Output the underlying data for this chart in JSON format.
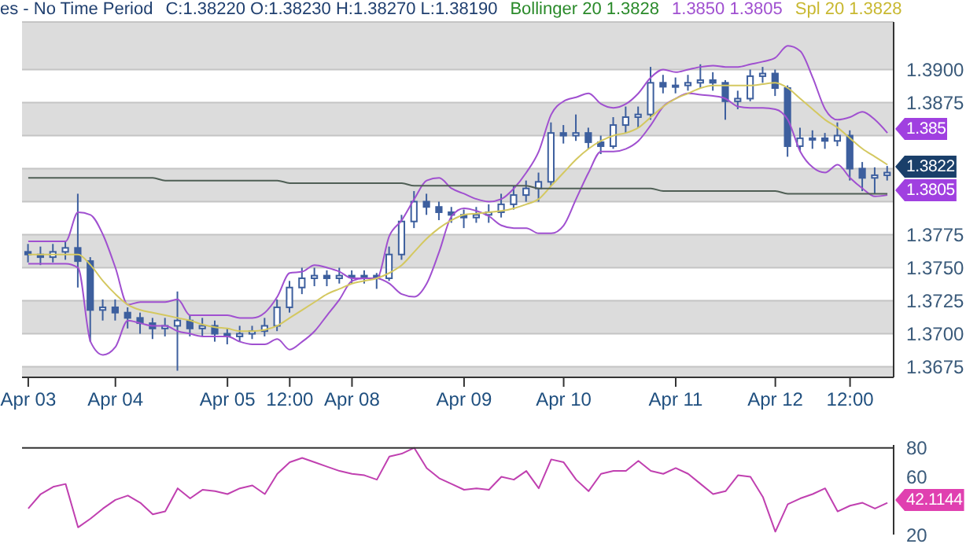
{
  "chart_data": [
    {
      "type": "candlestick",
      "color": "#3d5f9e",
      "annotations": [
        "es - No Time Period",
        "C:1.38220 O:1.38230 H:1.38270 L:1.38190",
        "Bollinger 20 1.3828",
        "1.3850 1.3805",
        "Spl 20 1.3828",
        "1.385",
        "1.3822",
        "1.3805"
      ],
      "categories": [
        "Apr 03",
        null,
        null,
        null,
        null,
        null,
        null,
        "Apr 04",
        null,
        null,
        null,
        null,
        null,
        null,
        null,
        null,
        "Apr 05",
        null,
        null,
        null,
        null,
        "12:00",
        null,
        null,
        null,
        null,
        "Apr 08",
        null,
        null,
        null,
        null,
        null,
        null,
        null,
        null,
        "Apr 09",
        null,
        null,
        null,
        null,
        null,
        null,
        null,
        "Apr 10",
        null,
        null,
        null,
        null,
        null,
        null,
        null,
        null,
        "Apr 11",
        null,
        null,
        null,
        null,
        null,
        null,
        null,
        "Apr 12",
        null,
        null,
        null,
        null,
        null,
        "12:00",
        null,
        null,
        null
      ],
      "ohlc": [
        [
          1.3762,
          1.3768,
          1.3754,
          1.376
        ],
        [
          1.376,
          1.3766,
          1.3752,
          1.3758
        ],
        [
          1.3758,
          1.3768,
          1.3754,
          1.3762
        ],
        [
          1.3762,
          1.377,
          1.3756,
          1.3765
        ],
        [
          1.3765,
          1.3806,
          1.3735,
          1.3755
        ],
        [
          1.3755,
          1.3758,
          1.3694,
          1.3718
        ],
        [
          1.3718,
          1.3726,
          1.371,
          1.372
        ],
        [
          1.372,
          1.3726,
          1.371,
          1.3716
        ],
        [
          1.3716,
          1.372,
          1.3704,
          1.3712
        ],
        [
          1.3712,
          1.3716,
          1.37,
          1.3708
        ],
        [
          1.3708,
          1.3712,
          1.3696,
          1.3704
        ],
        [
          1.3704,
          1.3712,
          1.3698,
          1.3706
        ],
        [
          1.3706,
          1.3732,
          1.3672,
          1.371
        ],
        [
          1.371,
          1.3714,
          1.3698,
          1.3704
        ],
        [
          1.3704,
          1.3712,
          1.3698,
          1.3706
        ],
        [
          1.3706,
          1.371,
          1.3694,
          1.37
        ],
        [
          1.37,
          1.3704,
          1.3692,
          1.3698
        ],
        [
          1.3698,
          1.3706,
          1.3694,
          1.37
        ],
        [
          1.37,
          1.3706,
          1.3696,
          1.3702
        ],
        [
          1.3702,
          1.3712,
          1.3698,
          1.3706
        ],
        [
          1.3706,
          1.3726,
          1.3702,
          1.372
        ],
        [
          1.372,
          1.374,
          1.3716,
          1.3735
        ],
        [
          1.3735,
          1.375,
          1.373,
          1.3742
        ],
        [
          1.3742,
          1.375,
          1.3736,
          1.3744
        ],
        [
          1.3744,
          1.3748,
          1.3736,
          1.3742
        ],
        [
          1.3742,
          1.375,
          1.3738,
          1.3744
        ],
        [
          1.3744,
          1.3748,
          1.3738,
          1.3743
        ],
        [
          1.3743,
          1.3748,
          1.3738,
          1.3744
        ],
        [
          1.3744,
          1.3746,
          1.3734,
          1.3742
        ],
        [
          1.3742,
          1.3766,
          1.374,
          1.376
        ],
        [
          1.376,
          1.379,
          1.3756,
          1.3785
        ],
        [
          1.3785,
          1.3808,
          1.378,
          1.38
        ],
        [
          1.38,
          1.3806,
          1.379,
          1.3796
        ],
        [
          1.3796,
          1.38,
          1.3786,
          1.3792
        ],
        [
          1.3792,
          1.3796,
          1.3784,
          1.379
        ],
        [
          1.379,
          1.3794,
          1.378,
          1.3788
        ],
        [
          1.3788,
          1.3796,
          1.3784,
          1.379
        ],
        [
          1.379,
          1.3798,
          1.3784,
          1.3792
        ],
        [
          1.3792,
          1.3806,
          1.3788,
          1.3798
        ],
        [
          1.3798,
          1.3812,
          1.3794,
          1.3805
        ],
        [
          1.3805,
          1.3816,
          1.38,
          1.381
        ],
        [
          1.381,
          1.3822,
          1.38,
          1.3815
        ],
        [
          1.3815,
          1.386,
          1.3812,
          1.3852
        ],
        [
          1.3852,
          1.3858,
          1.3844,
          1.385
        ],
        [
          1.385,
          1.3866,
          1.3846,
          1.3852
        ],
        [
          1.3852,
          1.3856,
          1.384,
          1.3845
        ],
        [
          1.3845,
          1.385,
          1.3836,
          1.3842
        ],
        [
          1.3842,
          1.3864,
          1.384,
          1.3858
        ],
        [
          1.3858,
          1.3872,
          1.3852,
          1.3864
        ],
        [
          1.3864,
          1.3872,
          1.3856,
          1.3866
        ],
        [
          1.3866,
          1.3902,
          1.3862,
          1.389
        ],
        [
          1.389,
          1.3896,
          1.3882,
          1.3887
        ],
        [
          1.3887,
          1.3894,
          1.3882,
          1.3888
        ],
        [
          1.3888,
          1.3896,
          1.3884,
          1.389
        ],
        [
          1.389,
          1.3904,
          1.3886,
          1.3892
        ],
        [
          1.3892,
          1.3898,
          1.3884,
          1.389
        ],
        [
          1.389,
          1.3892,
          1.3862,
          1.3876
        ],
        [
          1.3876,
          1.3884,
          1.387,
          1.3878
        ],
        [
          1.3878,
          1.39,
          1.3876,
          1.3895
        ],
        [
          1.3895,
          1.3902,
          1.389,
          1.3897
        ],
        [
          1.3897,
          1.39,
          1.388,
          1.3886
        ],
        [
          1.3886,
          1.3888,
          1.3834,
          1.3842
        ],
        [
          1.3842,
          1.3856,
          1.3838,
          1.3848
        ],
        [
          1.3848,
          1.3854,
          1.384,
          1.3848
        ],
        [
          1.3848,
          1.3852,
          1.384,
          1.3846
        ],
        [
          1.3846,
          1.386,
          1.3842,
          1.385
        ],
        [
          1.385,
          1.3854,
          1.3816,
          1.3825
        ],
        [
          1.3825,
          1.383,
          1.3808,
          1.3818
        ],
        [
          1.3818,
          1.3826,
          1.3806,
          1.382
        ],
        [
          1.382,
          1.3827,
          1.3816,
          1.3822
        ]
      ],
      "series": [
        {
          "type": "line",
          "color": "#a050d0",
          "values": [
            1.377,
            1.377,
            1.377,
            1.377,
            1.3792,
            1.379,
            1.3775,
            1.375,
            1.3722,
            1.3724,
            1.3724,
            1.3724,
            1.3726,
            1.3714,
            1.3714,
            1.3714,
            1.3714,
            1.3712,
            1.3712,
            1.3716,
            1.3728,
            1.3746,
            1.3747,
            1.3752,
            1.375,
            1.3747,
            1.3742,
            1.3742,
            1.3742,
            1.3774,
            1.3786,
            1.3802,
            1.3816,
            1.3818,
            1.381,
            1.3806,
            1.3802,
            1.38,
            1.3802,
            1.381,
            1.3822,
            1.3838,
            1.3866,
            1.3876,
            1.3879,
            1.3882,
            1.3874,
            1.3871,
            1.3874,
            1.3882,
            1.3894,
            1.39,
            1.3898,
            1.39,
            1.3902,
            1.3903,
            1.3902,
            1.3902,
            1.3904,
            1.3906,
            1.3909,
            1.3918,
            1.3914,
            1.3894,
            1.387,
            1.3862,
            1.3864,
            1.3868,
            1.3862,
            1.3852
          ]
        },
        {
          "type": "line",
          "color": "#a050d0",
          "values": [
            1.3753,
            1.3753,
            1.3753,
            1.3753,
            1.375,
            1.3694,
            1.3684,
            1.369,
            1.371,
            1.3708,
            1.3706,
            1.3706,
            1.3702,
            1.37,
            1.3698,
            1.3698,
            1.3698,
            1.3694,
            1.3692,
            1.3692,
            1.3696,
            1.3688,
            1.3694,
            1.3702,
            1.3714,
            1.3726,
            1.374,
            1.3742,
            1.3742,
            1.3738,
            1.373,
            1.3728,
            1.3738,
            1.3762,
            1.3789,
            1.3795,
            1.3793,
            1.3789,
            1.3782,
            1.378,
            1.378,
            1.3776,
            1.3776,
            1.3782,
            1.3802,
            1.3822,
            1.3838,
            1.3838,
            1.384,
            1.3846,
            1.3858,
            1.3872,
            1.3878,
            1.3882,
            1.3881,
            1.388,
            1.3878,
            1.3872,
            1.3871,
            1.3871,
            1.387,
            1.3862,
            1.3838,
            1.3826,
            1.3822,
            1.3828,
            1.3818,
            1.381,
            1.3804,
            1.3805
          ]
        },
        {
          "type": "line",
          "color": "#d4c860",
          "values": [
            1.376,
            1.376,
            1.376,
            1.376,
            1.376,
            1.3752,
            1.374,
            1.373,
            1.3722,
            1.3718,
            1.3716,
            1.3714,
            1.3712,
            1.371,
            1.3707,
            1.3705,
            1.3704,
            1.3702,
            1.3702,
            1.3703,
            1.3706,
            1.3712,
            1.3718,
            1.3724,
            1.373,
            1.3734,
            1.3738,
            1.374,
            1.3742,
            1.3746,
            1.3752,
            1.3762,
            1.3772,
            1.378,
            1.3786,
            1.379,
            1.3791,
            1.3792,
            1.3793,
            1.3795,
            1.3798,
            1.3802,
            1.3812,
            1.3822,
            1.3832,
            1.384,
            1.3846,
            1.385,
            1.3852,
            1.3856,
            1.3864,
            1.3872,
            1.3878,
            1.3882,
            1.3886,
            1.3888,
            1.3888,
            1.3888,
            1.3888,
            1.3889,
            1.389,
            1.3886,
            1.3878,
            1.387,
            1.3862,
            1.3856,
            1.3848,
            1.384,
            1.3834,
            1.3828
          ]
        },
        {
          "type": "line",
          "color": "#4f5f55",
          "values": [
            1.3818,
            1.3818,
            1.3818,
            1.3818,
            1.3818,
            1.3818,
            1.3818,
            1.3818,
            1.3818,
            1.3818,
            1.3818,
            1.3816,
            1.3816,
            1.3816,
            1.3816,
            1.3816,
            1.3816,
            1.3816,
            1.3816,
            1.3816,
            1.3816,
            1.3814,
            1.3814,
            1.3814,
            1.3814,
            1.3814,
            1.3814,
            1.3814,
            1.3814,
            1.3814,
            1.3814,
            1.3812,
            1.3812,
            1.3812,
            1.3812,
            1.3812,
            1.3812,
            1.3812,
            1.3812,
            1.3812,
            1.3812,
            1.381,
            1.381,
            1.381,
            1.381,
            1.381,
            1.381,
            1.381,
            1.381,
            1.381,
            1.381,
            1.3808,
            1.3808,
            1.3808,
            1.3808,
            1.3808,
            1.3808,
            1.3808,
            1.3808,
            1.3808,
            1.3808,
            1.3806,
            1.3806,
            1.3806,
            1.3806,
            1.3806,
            1.3806,
            1.3806,
            1.3806,
            1.3806
          ]
        }
      ],
      "ylim": [
        1.3667,
        1.3936
      ],
      "yticks": [
        {
          "value": 1.39,
          "label": "1.3900"
        },
        1.3875,
        {
          "value": 1.385,
          "label": null
        },
        {
          "value": 1.3825,
          "label": null
        },
        {
          "value": 1.38,
          "label": null
        },
        1.3775,
        {
          "value": 1.375,
          "label": "1.3750"
        },
        1.3725,
        {
          "value": 1.37,
          "label": "1.3700"
        },
        1.3675
      ],
      "grid": "y"
    },
    {
      "type": "line",
      "color": "#c040b0",
      "tick_labels": "y",
      "categories": [
        null,
        null,
        null,
        null,
        null,
        null,
        null,
        null,
        null,
        null,
        null,
        null,
        null,
        null,
        null,
        null,
        null,
        null,
        null,
        null,
        null,
        null,
        null,
        null,
        null,
        null,
        null,
        null,
        null,
        null,
        null,
        null,
        null,
        null,
        null,
        null,
        null,
        null,
        null,
        null,
        null,
        null,
        null,
        null,
        null,
        null,
        null,
        null,
        null,
        null,
        null,
        null,
        null,
        null,
        null,
        null,
        null,
        null,
        null,
        null,
        null,
        null,
        null,
        null,
        null,
        null,
        null,
        null,
        null,
        null
      ],
      "values": [
        38,
        48,
        53,
        55,
        25,
        31,
        38,
        44,
        47,
        42,
        34,
        36,
        52,
        45,
        51,
        50,
        48,
        52,
        54,
        48,
        62,
        70,
        73,
        70,
        67,
        64,
        62,
        61,
        58,
        74,
        76,
        80,
        66,
        59,
        55,
        51,
        52,
        51,
        60,
        58,
        64,
        52,
        72,
        70,
        58,
        50,
        62,
        64,
        64,
        71,
        64,
        62,
        66,
        62,
        55,
        48,
        50,
        61,
        60,
        46,
        22,
        41,
        45,
        48,
        52,
        36,
        40,
        42,
        38,
        42
      ],
      "ylim": [
        20,
        82
      ],
      "yticks": [
        20,
        60,
        80
      ],
      "ref_lines": [
        {
          "axis": "y",
          "value": 80,
          "color": "#333333"
        }
      ],
      "annotations": [
        "42.1144"
      ]
    }
  ]
}
